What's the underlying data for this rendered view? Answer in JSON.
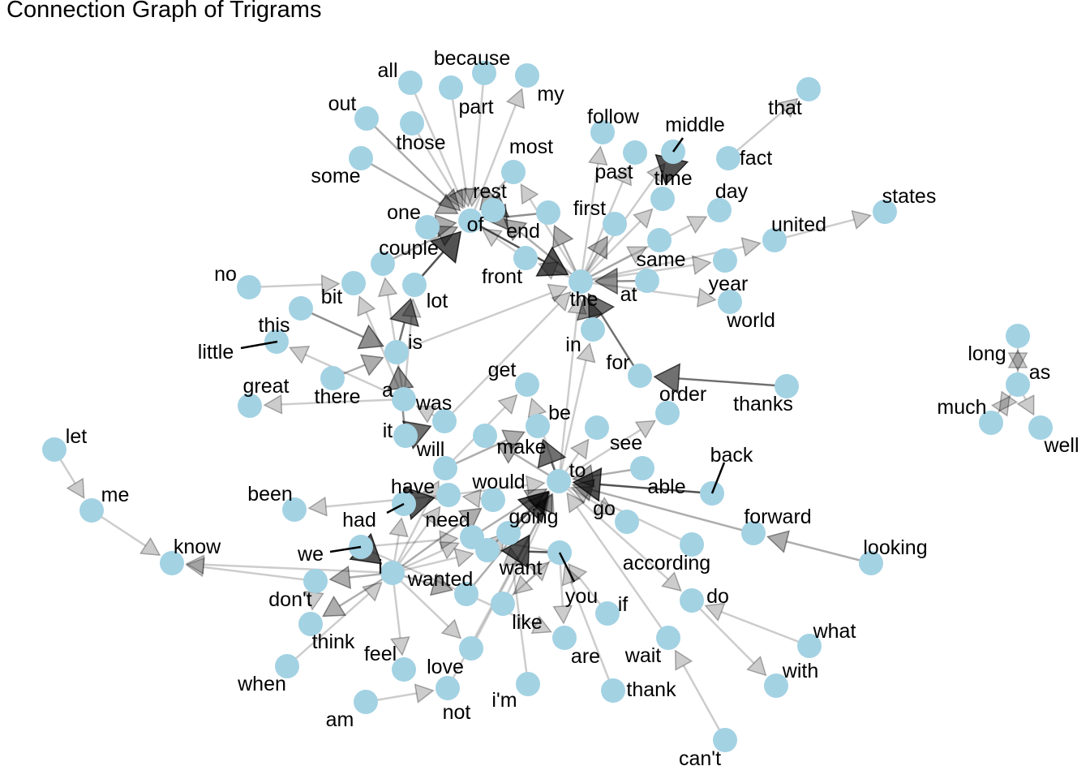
{
  "title": "Connection Graph of Trigrams",
  "style": {
    "node_color": "#a3d2e3",
    "edge_color": "#000000",
    "label_color": "#000000",
    "background": "#ffffff"
  },
  "graph": {
    "nodes": [
      {
        "id": "all",
        "label": "all"
      },
      {
        "id": "because",
        "label": "because"
      },
      {
        "id": "part",
        "label": "part"
      },
      {
        "id": "my",
        "label": "my"
      },
      {
        "id": "out",
        "label": "out"
      },
      {
        "id": "those",
        "label": "those"
      },
      {
        "id": "some",
        "label": "some"
      },
      {
        "id": "most",
        "label": "most"
      },
      {
        "id": "rest",
        "label": "rest"
      },
      {
        "id": "of",
        "label": "of"
      },
      {
        "id": "one",
        "label": "one"
      },
      {
        "id": "couple",
        "label": "couple"
      },
      {
        "id": "end",
        "label": "end"
      },
      {
        "id": "front",
        "label": "front"
      },
      {
        "id": "lot",
        "label": "lot"
      },
      {
        "id": "no",
        "label": "no"
      },
      {
        "id": "bit",
        "label": "bit"
      },
      {
        "id": "this",
        "label": "this"
      },
      {
        "id": "little",
        "label": "little"
      },
      {
        "id": "is",
        "label": "is"
      },
      {
        "id": "great",
        "label": "great"
      },
      {
        "id": "there",
        "label": "there"
      },
      {
        "id": "a",
        "label": "a"
      },
      {
        "id": "was",
        "label": "was"
      },
      {
        "id": "it",
        "label": "it"
      },
      {
        "id": "will",
        "label": "will"
      },
      {
        "id": "get",
        "label": "get"
      },
      {
        "id": "be",
        "label": "be"
      },
      {
        "id": "make",
        "label": "make"
      },
      {
        "id": "follow",
        "label": "follow"
      },
      {
        "id": "past",
        "label": "past"
      },
      {
        "id": "middle",
        "label": "middle"
      },
      {
        "id": "time",
        "label": "time"
      },
      {
        "id": "first",
        "label": "first"
      },
      {
        "id": "fact",
        "label": "fact"
      },
      {
        "id": "that",
        "label": "that"
      },
      {
        "id": "day",
        "label": "day"
      },
      {
        "id": "same",
        "label": "same"
      },
      {
        "id": "united",
        "label": "united"
      },
      {
        "id": "states",
        "label": "states"
      },
      {
        "id": "the",
        "label": "the"
      },
      {
        "id": "at",
        "label": "at"
      },
      {
        "id": "year",
        "label": "year"
      },
      {
        "id": "world",
        "label": "world"
      },
      {
        "id": "in",
        "label": "in"
      },
      {
        "id": "for",
        "label": "for"
      },
      {
        "id": "thanks",
        "label": "thanks"
      },
      {
        "id": "order",
        "label": "order"
      },
      {
        "id": "see",
        "label": "see"
      },
      {
        "id": "to",
        "label": "to"
      },
      {
        "id": "able",
        "label": "able"
      },
      {
        "id": "back",
        "label": "back"
      },
      {
        "id": "forward",
        "label": "forward"
      },
      {
        "id": "looking",
        "label": "looking"
      },
      {
        "id": "go",
        "label": "go"
      },
      {
        "id": "according",
        "label": "according"
      },
      {
        "id": "do",
        "label": "do"
      },
      {
        "id": "what",
        "label": "what"
      },
      {
        "id": "with",
        "label": "with"
      },
      {
        "id": "let",
        "label": "let"
      },
      {
        "id": "me",
        "label": "me"
      },
      {
        "id": "know",
        "label": "know"
      },
      {
        "id": "been",
        "label": "been"
      },
      {
        "id": "have",
        "label": "have"
      },
      {
        "id": "had",
        "label": "had"
      },
      {
        "id": "would",
        "label": "would"
      },
      {
        "id": "need",
        "label": "need"
      },
      {
        "id": "going",
        "label": "going"
      },
      {
        "id": "we",
        "label": "we"
      },
      {
        "id": "i",
        "label": "i"
      },
      {
        "id": "wanted",
        "label": "wanted"
      },
      {
        "id": "want",
        "label": "want"
      },
      {
        "id": "you",
        "label": "you"
      },
      {
        "id": "if",
        "label": "if"
      },
      {
        "id": "don't",
        "label": "don't"
      },
      {
        "id": "think",
        "label": "think"
      },
      {
        "id": "when",
        "label": "when"
      },
      {
        "id": "feel",
        "label": "feel"
      },
      {
        "id": "love",
        "label": "love"
      },
      {
        "id": "like",
        "label": "like"
      },
      {
        "id": "am",
        "label": "am"
      },
      {
        "id": "not",
        "label": "not"
      },
      {
        "id": "i'm",
        "label": "i'm"
      },
      {
        "id": "are",
        "label": "are"
      },
      {
        "id": "wait",
        "label": "wait"
      },
      {
        "id": "thank",
        "label": "thank"
      },
      {
        "id": "can't",
        "label": "can't"
      },
      {
        "id": "long",
        "label": "long"
      },
      {
        "id": "as",
        "label": "as"
      },
      {
        "id": "much",
        "label": "much"
      },
      {
        "id": "well",
        "label": "well"
      }
    ],
    "edges": [
      {
        "from": "all",
        "to": "of",
        "weight": 1
      },
      {
        "from": "because",
        "to": "of",
        "weight": 1
      },
      {
        "from": "part",
        "to": "of",
        "weight": 1
      },
      {
        "from": "out",
        "to": "of",
        "weight": 2
      },
      {
        "from": "those",
        "to": "of",
        "weight": 1
      },
      {
        "from": "some",
        "to": "of",
        "weight": 2
      },
      {
        "from": "most",
        "to": "of",
        "weight": 2
      },
      {
        "from": "rest",
        "to": "of",
        "weight": 3
      },
      {
        "from": "one",
        "to": "of",
        "weight": 2
      },
      {
        "from": "couple",
        "to": "of",
        "weight": 2
      },
      {
        "from": "end",
        "to": "of",
        "weight": 3
      },
      {
        "from": "front",
        "to": "of",
        "weight": 1
      },
      {
        "from": "lot",
        "to": "of",
        "weight": 5
      },
      {
        "from": "of",
        "to": "the",
        "weight": 5
      },
      {
        "from": "of",
        "to": "my",
        "weight": 1
      },
      {
        "from": "is",
        "to": "lot",
        "weight": 4
      },
      {
        "from": "a",
        "to": "lot",
        "weight": 1
      },
      {
        "from": "a",
        "to": "bit",
        "weight": 1
      },
      {
        "from": "a",
        "to": "little",
        "weight": 1
      },
      {
        "from": "a",
        "to": "couple",
        "weight": 1
      },
      {
        "from": "a",
        "to": "great",
        "weight": 1
      },
      {
        "from": "this",
        "to": "is",
        "weight": 3
      },
      {
        "from": "no",
        "to": "bit",
        "weight": 1
      },
      {
        "from": "there",
        "to": "is",
        "weight": 2
      },
      {
        "from": "it",
        "to": "is",
        "weight": 3
      },
      {
        "from": "it",
        "to": "was",
        "weight": 4
      },
      {
        "from": "is",
        "to": "the",
        "weight": 1
      },
      {
        "from": "was",
        "to": "a",
        "weight": 1
      },
      {
        "from": "was",
        "to": "the",
        "weight": 1
      },
      {
        "from": "will",
        "to": "be",
        "weight": 2
      },
      {
        "from": "will",
        "to": "get",
        "weight": 1
      },
      {
        "from": "the",
        "to": "follow",
        "weight": 1
      },
      {
        "from": "the",
        "to": "past",
        "weight": 1
      },
      {
        "from": "the",
        "to": "middle",
        "weight": 1
      },
      {
        "from": "the",
        "to": "time",
        "weight": 1
      },
      {
        "from": "the",
        "to": "first",
        "weight": 2
      },
      {
        "from": "the",
        "to": "same",
        "weight": 1
      },
      {
        "from": "the",
        "to": "day",
        "weight": 1
      },
      {
        "from": "the",
        "to": "united",
        "weight": 1
      },
      {
        "from": "the",
        "to": "year",
        "weight": 1
      },
      {
        "from": "the",
        "to": "world",
        "weight": 1
      },
      {
        "from": "the",
        "to": "end",
        "weight": 2
      },
      {
        "from": "the",
        "to": "rest",
        "weight": 2
      },
      {
        "from": "the",
        "to": "front",
        "weight": 1
      },
      {
        "from": "the",
        "to": "most",
        "weight": 1
      },
      {
        "from": "at",
        "to": "the",
        "weight": 3
      },
      {
        "from": "in",
        "to": "the",
        "weight": 3
      },
      {
        "from": "for",
        "to": "the",
        "weight": 4
      },
      {
        "from": "middle",
        "to": "time",
        "weight": 5
      },
      {
        "from": "fact",
        "to": "that",
        "weight": 1
      },
      {
        "from": "united",
        "to": "states",
        "weight": 1
      },
      {
        "from": "thanks",
        "to": "for",
        "weight": 4
      },
      {
        "from": "to",
        "to": "see",
        "weight": 1
      },
      {
        "from": "to",
        "to": "be",
        "weight": 4
      },
      {
        "from": "to",
        "to": "make",
        "weight": 2
      },
      {
        "from": "to",
        "to": "go",
        "weight": 1
      },
      {
        "from": "to",
        "to": "get",
        "weight": 1
      },
      {
        "from": "to",
        "to": "do",
        "weight": 1
      },
      {
        "from": "to",
        "to": "the",
        "weight": 1
      },
      {
        "from": "to",
        "to": "order",
        "weight": 1
      },
      {
        "from": "to",
        "to": "in",
        "weight": 1
      },
      {
        "from": "able",
        "to": "to",
        "weight": 2
      },
      {
        "from": "back",
        "to": "to",
        "weight": 5
      },
      {
        "from": "forward",
        "to": "to",
        "weight": 2
      },
      {
        "from": "looking",
        "to": "forward",
        "weight": 2
      },
      {
        "from": "going",
        "to": "to",
        "weight": 5
      },
      {
        "from": "need",
        "to": "to",
        "weight": 2
      },
      {
        "from": "want",
        "to": "to",
        "weight": 2
      },
      {
        "from": "wanted",
        "to": "to",
        "weight": 2
      },
      {
        "from": "like",
        "to": "to",
        "weight": 1
      },
      {
        "from": "according",
        "to": "to",
        "weight": 1
      },
      {
        "from": "have",
        "to": "to",
        "weight": 1
      },
      {
        "from": "what",
        "to": "do",
        "weight": 1
      },
      {
        "from": "do",
        "to": "with",
        "weight": 1
      },
      {
        "from": "can't",
        "to": "wait",
        "weight": 1
      },
      {
        "from": "let",
        "to": "me",
        "weight": 1
      },
      {
        "from": "me",
        "to": "know",
        "weight": 1
      },
      {
        "from": "have",
        "to": "been",
        "weight": 1
      },
      {
        "from": "had",
        "to": "have",
        "weight": 5
      },
      {
        "from": "would",
        "to": "have",
        "weight": 1
      },
      {
        "from": "i",
        "to": "have",
        "weight": 1
      },
      {
        "from": "i",
        "to": "had",
        "weight": 1
      },
      {
        "from": "i",
        "to": "would",
        "weight": 2
      },
      {
        "from": "i",
        "to": "need",
        "weight": 1
      },
      {
        "from": "i",
        "to": "wanted",
        "weight": 2
      },
      {
        "from": "i",
        "to": "want",
        "weight": 1
      },
      {
        "from": "i",
        "to": "think",
        "weight": 2
      },
      {
        "from": "i",
        "to": "feel",
        "weight": 1
      },
      {
        "from": "i",
        "to": "love",
        "weight": 1
      },
      {
        "from": "i",
        "to": "don't",
        "weight": 2
      },
      {
        "from": "i",
        "to": "know",
        "weight": 1
      },
      {
        "from": "i",
        "to": "will",
        "weight": 1
      },
      {
        "from": "we",
        "to": "i",
        "weight": 5
      },
      {
        "from": "we",
        "to": "need",
        "weight": 1
      },
      {
        "from": "we",
        "to": "are",
        "weight": 1
      },
      {
        "from": "when",
        "to": "i",
        "weight": 1
      },
      {
        "from": "don't",
        "to": "know",
        "weight": 1
      },
      {
        "from": "don't",
        "to": "think",
        "weight": 1
      },
      {
        "from": "am",
        "to": "not",
        "weight": 1
      },
      {
        "from": "i'm",
        "to": "going",
        "weight": 1
      },
      {
        "from": "like",
        "to": "you",
        "weight": 1
      },
      {
        "from": "you",
        "to": "want",
        "weight": 5
      },
      {
        "from": "you",
        "to": "need",
        "weight": 1
      },
      {
        "from": "you",
        "to": "are",
        "weight": 1
      },
      {
        "from": "you",
        "to": "like",
        "weight": 1
      },
      {
        "from": "if",
        "to": "you",
        "weight": 1
      },
      {
        "from": "thank",
        "to": "you",
        "weight": 1
      },
      {
        "from": "wait",
        "to": "to",
        "weight": 1
      },
      {
        "from": "love",
        "to": "to",
        "weight": 1
      },
      {
        "from": "not",
        "to": "to",
        "weight": 1
      },
      {
        "from": "long",
        "to": "as",
        "weight": 1
      },
      {
        "from": "much",
        "to": "as",
        "weight": 1
      },
      {
        "from": "as",
        "to": "well",
        "weight": 1
      },
      {
        "from": "as",
        "to": "much",
        "weight": 1
      },
      {
        "from": "as",
        "to": "long",
        "weight": 1
      }
    ]
  }
}
